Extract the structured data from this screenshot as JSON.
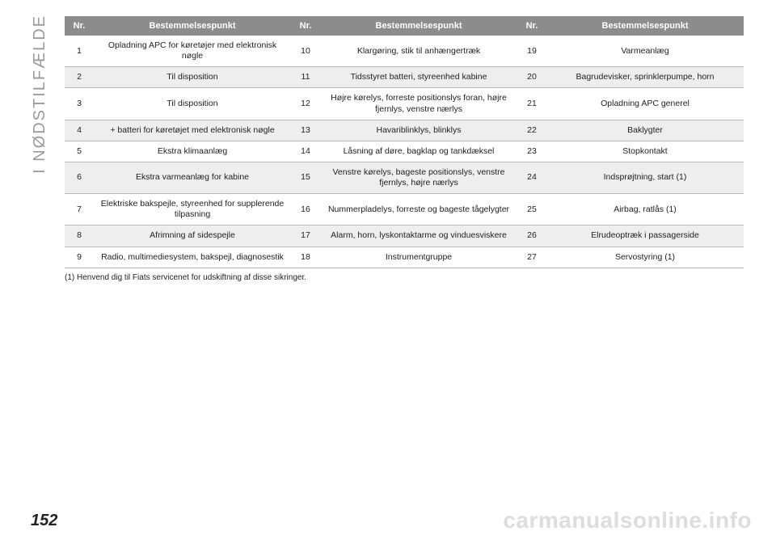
{
  "sideTab": "I NØDSTILFÆLDE",
  "pageNumber": "152",
  "watermark": "carmanualsonline.info",
  "footnote": "(1) Henvend dig til Fiats servicenet for udskiftning af disse sikringer.",
  "headers": {
    "nr": "Nr.",
    "dest": "Bestemmelsespunkt"
  },
  "style": {
    "header_bg": "#8c8c8c",
    "header_fg": "#ffffff",
    "row_bg": "#ffffff",
    "row_alt_bg": "#eeeeee",
    "border_color": "#b8b8b8",
    "text_color": "#222222",
    "sidetab_color": "#9a9a9a",
    "watermark_color": "rgba(120,120,120,0.25)",
    "header_fontsize": 11,
    "cell_fontsize": 10.5,
    "footnote_fontsize": 10,
    "pagenum_fontsize": 20,
    "sidetab_fontsize": 20,
    "watermark_fontsize": 28
  },
  "rows": [
    {
      "c1n": "1",
      "c1d": "Opladning APC for køretøjer med elektronisk nøgle",
      "c2n": "10",
      "c2d": "Klargøring, stik til anhængertræk",
      "c3n": "19",
      "c3d": "Varmeanlæg",
      "shade": false
    },
    {
      "c1n": "2",
      "c1d": "Til disposition",
      "c2n": "11",
      "c2d": "Tidsstyret batteri, styreenhed kabine",
      "c3n": "20",
      "c3d": "Bagrudevisker, sprinklerpumpe, horn",
      "shade": true
    },
    {
      "c1n": "3",
      "c1d": "Til disposition",
      "c2n": "12",
      "c2d": "Højre kørelys, forreste positionslys foran, højre fjernlys, venstre nærlys",
      "c3n": "21",
      "c3d": "Opladning APC generel",
      "shade": false
    },
    {
      "c1n": "4",
      "c1d": "+ batteri for køretøjet med elektronisk nøgle",
      "c2n": "13",
      "c2d": "Havariblinklys, blinklys",
      "c3n": "22",
      "c3d": "Baklygter",
      "shade": true
    },
    {
      "c1n": "5",
      "c1d": "Ekstra klimaanlæg",
      "c2n": "14",
      "c2d": "Låsning af døre, bagklap og tankdæksel",
      "c3n": "23",
      "c3d": "Stopkontakt",
      "shade": false
    },
    {
      "c1n": "6",
      "c1d": "Ekstra varmeanlæg for kabine",
      "c2n": "15",
      "c2d": "Venstre kørelys, bageste positionslys, venstre fjernlys, højre nærlys",
      "c3n": "24",
      "c3d": "Indsprøjtning, start (1)",
      "shade": true
    },
    {
      "c1n": "7",
      "c1d": "Elektriske bakspejle, styreenhed for supplerende tilpasning",
      "c2n": "16",
      "c2d": "Nummerpladelys, forreste og bageste tågelygter",
      "c3n": "25",
      "c3d": "Airbag, ratlås (1)",
      "shade": false
    },
    {
      "c1n": "8",
      "c1d": "Afrimning af sidespejle",
      "c2n": "17",
      "c2d": "Alarm, horn, lyskontaktarme og vinduesviskere",
      "c3n": "26",
      "c3d": "Elrudeoptræk i passagerside",
      "shade": true
    },
    {
      "c1n": "9",
      "c1d": "Radio, multimediesystem, bakspejl, diagnosestik",
      "c2n": "18",
      "c2d": "Instrumentgruppe",
      "c3n": "27",
      "c3d": "Servostyring (1)",
      "shade": false
    }
  ]
}
